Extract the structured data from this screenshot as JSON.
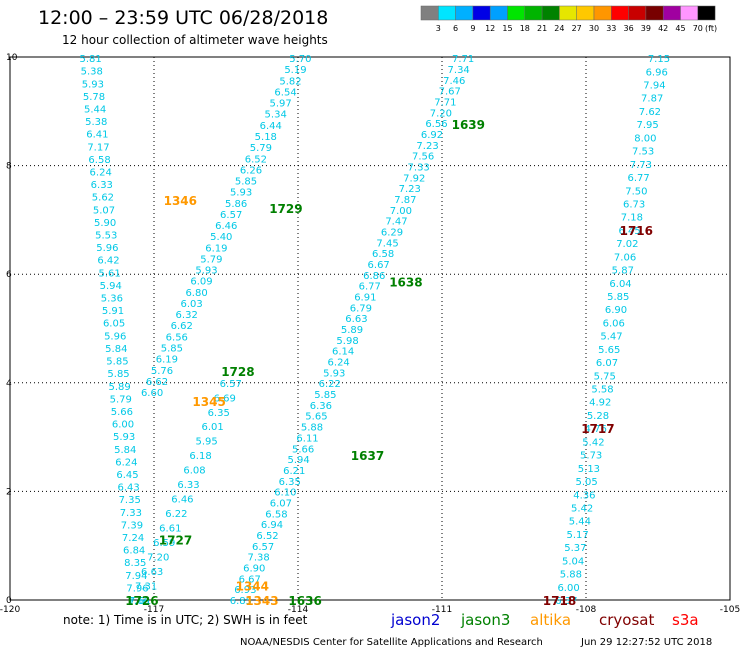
{
  "chart_data": {
    "type": "scatter",
    "title": "12:00  –  23:59  UTC  06/28/2018",
    "subtitle": "12 hour collection of altimeter wave heights",
    "xlim": [
      -120,
      -105
    ],
    "ylim": [
      0,
      10
    ],
    "grid": true,
    "x_ticks": [
      "-120",
      "-117",
      "-114",
      "-111",
      "-108",
      "-105"
    ],
    "x_tick_values": [
      -120,
      -117,
      -114,
      -111,
      -108,
      -105
    ],
    "y_ticks": [
      "0",
      "2",
      "4",
      "6",
      "8",
      "10"
    ],
    "y_tick_values": [
      0,
      2,
      4,
      6,
      8,
      10
    ],
    "legend": {
      "unit": "(ft)",
      "labels": [
        "3",
        "6",
        "9",
        "12",
        "15",
        "18",
        "21",
        "24",
        "27",
        "30",
        "33",
        "36",
        "39",
        "42",
        "45",
        "70"
      ],
      "colors": [
        "#808080",
        "#00e5ff",
        "#00b0ff",
        "#0000e6",
        "#00a0ff",
        "#00e600",
        "#00b400",
        "#008200",
        "#e6e600",
        "#ffc800",
        "#ff9600",
        "#ff0000",
        "#c80000",
        "#780000",
        "#a000a0",
        "#ff96ff",
        "#000000"
      ]
    },
    "passes": [
      {
        "label": "1346",
        "satellite": "altika",
        "x": -116.8,
        "y": 7.35
      },
      {
        "label": "1729",
        "satellite": "jason3",
        "x": -114.6,
        "y": 7.2
      },
      {
        "label": "1639",
        "satellite": "jason3",
        "x": -110.8,
        "y": 8.75
      },
      {
        "label": "1716",
        "satellite": "cryosat",
        "x": -107.3,
        "y": 6.8
      },
      {
        "label": "1638",
        "satellite": "jason3",
        "x": -112.1,
        "y": 5.85
      },
      {
        "label": "1728",
        "satellite": "jason3",
        "x": -115.6,
        "y": 4.2
      },
      {
        "label": "1345",
        "satellite": "altika",
        "x": -116.2,
        "y": 3.65
      },
      {
        "label": "1717",
        "satellite": "cryosat",
        "x": -108.1,
        "y": 3.15
      },
      {
        "label": "1637",
        "satellite": "jason3",
        "x": -112.9,
        "y": 2.65
      },
      {
        "label": "1727",
        "satellite": "jason3",
        "x": -116.9,
        "y": 1.1
      },
      {
        "label": "1344",
        "satellite": "altika",
        "x": -115.3,
        "y": 0.25
      },
      {
        "label": "1343",
        "satellite": "altika",
        "x": -115.1,
        "y": -0.02
      },
      {
        "label": "1636",
        "satellite": "jason3",
        "x": -114.2,
        "y": -0.02
      },
      {
        "label": "1726",
        "satellite": "jason3",
        "x": -117.6,
        "y": -0.02
      },
      {
        "label": "1718",
        "satellite": "cryosat",
        "x": -108.9,
        "y": -0.02
      }
    ],
    "tracks": [
      {
        "x0": -118.32,
        "y0": 9.98,
        "x1": -117.32,
        "y1": 0.0,
        "values": [
          "5.81",
          "5.38",
          "5.93",
          "5.78",
          "5.44",
          "5.38",
          "6.41",
          "7.17",
          "6.58",
          "6.24",
          "6.33",
          "5.62",
          "5.07",
          "5.90",
          "5.53",
          "5.96",
          "6.42",
          "5.61",
          "5.94",
          "5.36",
          "5.91",
          "6.05",
          "5.96",
          "5.84",
          "5.85",
          "5.85",
          "5.89",
          "5.79",
          "5.66",
          "6.00",
          "5.93",
          "5.84",
          "6.24",
          "6.45",
          "6.43",
          "7.35",
          "7.33",
          "7.39",
          "7.24",
          "6.84",
          "8.35",
          "7.94",
          "7.96",
          "7.66"
        ]
      },
      {
        "x0": -113.95,
        "y0": 9.98,
        "x1": -117.04,
        "y1": 3.83,
        "values": [
          "5.70",
          "5.19",
          "5.82",
          "6.54",
          "5.97",
          "5.34",
          "6.44",
          "5.18",
          "5.79",
          "6.52",
          "6.26",
          "5.85",
          "5.93",
          "5.86",
          "6.57",
          "6.46",
          "5.40",
          "6.19",
          "5.79",
          "5.93",
          "6.09",
          "6.80",
          "6.03",
          "6.32",
          "6.62",
          "6.56",
          "5.85",
          "6.19",
          "5.76",
          "6.62",
          "6.60"
        ]
      },
      {
        "x0": -115.4,
        "y0": 4.0,
        "x1": -117.29,
        "y1": 0.0,
        "values": [
          "6.57",
          "6.69",
          "6.35",
          "6.01",
          "5.95",
          "6.18",
          "6.08",
          "6.33",
          "6.46",
          "6.22",
          "6.61",
          "6.59",
          "7.20",
          "6.63",
          "7.31",
          "7.61"
        ]
      },
      {
        "x0": -110.56,
        "y0": 9.98,
        "x1": -115.19,
        "y1": 0.0,
        "values": [
          "7.71",
          "7.34",
          "7.46",
          "7.67",
          "7.71",
          "7.20",
          "6.56",
          "6.92",
          "7.23",
          "7.56",
          "7.33",
          "7.92",
          "7.23",
          "7.87",
          "7.00",
          "7.47",
          "6.29",
          "7.45",
          "6.58",
          "6.67",
          "6.86",
          "6.77",
          "6.91",
          "6.79",
          "6.63",
          "5.89",
          "5.98",
          "6.14",
          "6.24",
          "5.93",
          "6.22",
          "5.85",
          "6.36",
          "5.65",
          "5.88",
          "6.11",
          "5.66",
          "5.94",
          "6.21",
          "6.35",
          "6.10",
          "6.07",
          "6.58",
          "6.94",
          "6.52",
          "6.57",
          "7.38",
          "6.90",
          "6.67",
          "6.93",
          "6.85"
        ]
      },
      {
        "x0": -106.48,
        "y0": 9.98,
        "x1": -108.41,
        "y1": 0.0,
        "values": [
          "7.15",
          "6.96",
          "7.94",
          "7.87",
          "7.62",
          "7.95",
          "8.00",
          "7.53",
          "7.73",
          "6.77",
          "7.50",
          "6.73",
          "7.18",
          "6.45",
          "7.02",
          "7.06",
          "5.87",
          "6.04",
          "5.85",
          "6.90",
          "6.06",
          "5.47",
          "5.65",
          "6.07",
          "5.75",
          "5.58",
          "4.92",
          "5.28",
          "4.76",
          "5.42",
          "5.73",
          "5.13",
          "5.05",
          "4.36",
          "5.42",
          "5.44",
          "5.17",
          "5.37",
          "5.04",
          "5.88",
          "6.00",
          "6.37"
        ]
      }
    ]
  },
  "colors": {
    "wave_value": "#00c8e6",
    "jason2": "#0000d0",
    "jason3": "#008000",
    "altika": "#ff9900",
    "cryosat": "#800000",
    "s3a": "#ff0000"
  },
  "note_text": "note:  1) Time is in UTC;  2) SWH is in feet",
  "satellites": {
    "jason2": "jason2",
    "jason3": "jason3",
    "altika": "altika",
    "cryosat": "cryosat",
    "s3a": "s3a"
  },
  "credit": "NOAA/NESDIS Center for Satellite Applications and Research",
  "timestamp": "Jun 29 12:27:52 UTC 2018"
}
